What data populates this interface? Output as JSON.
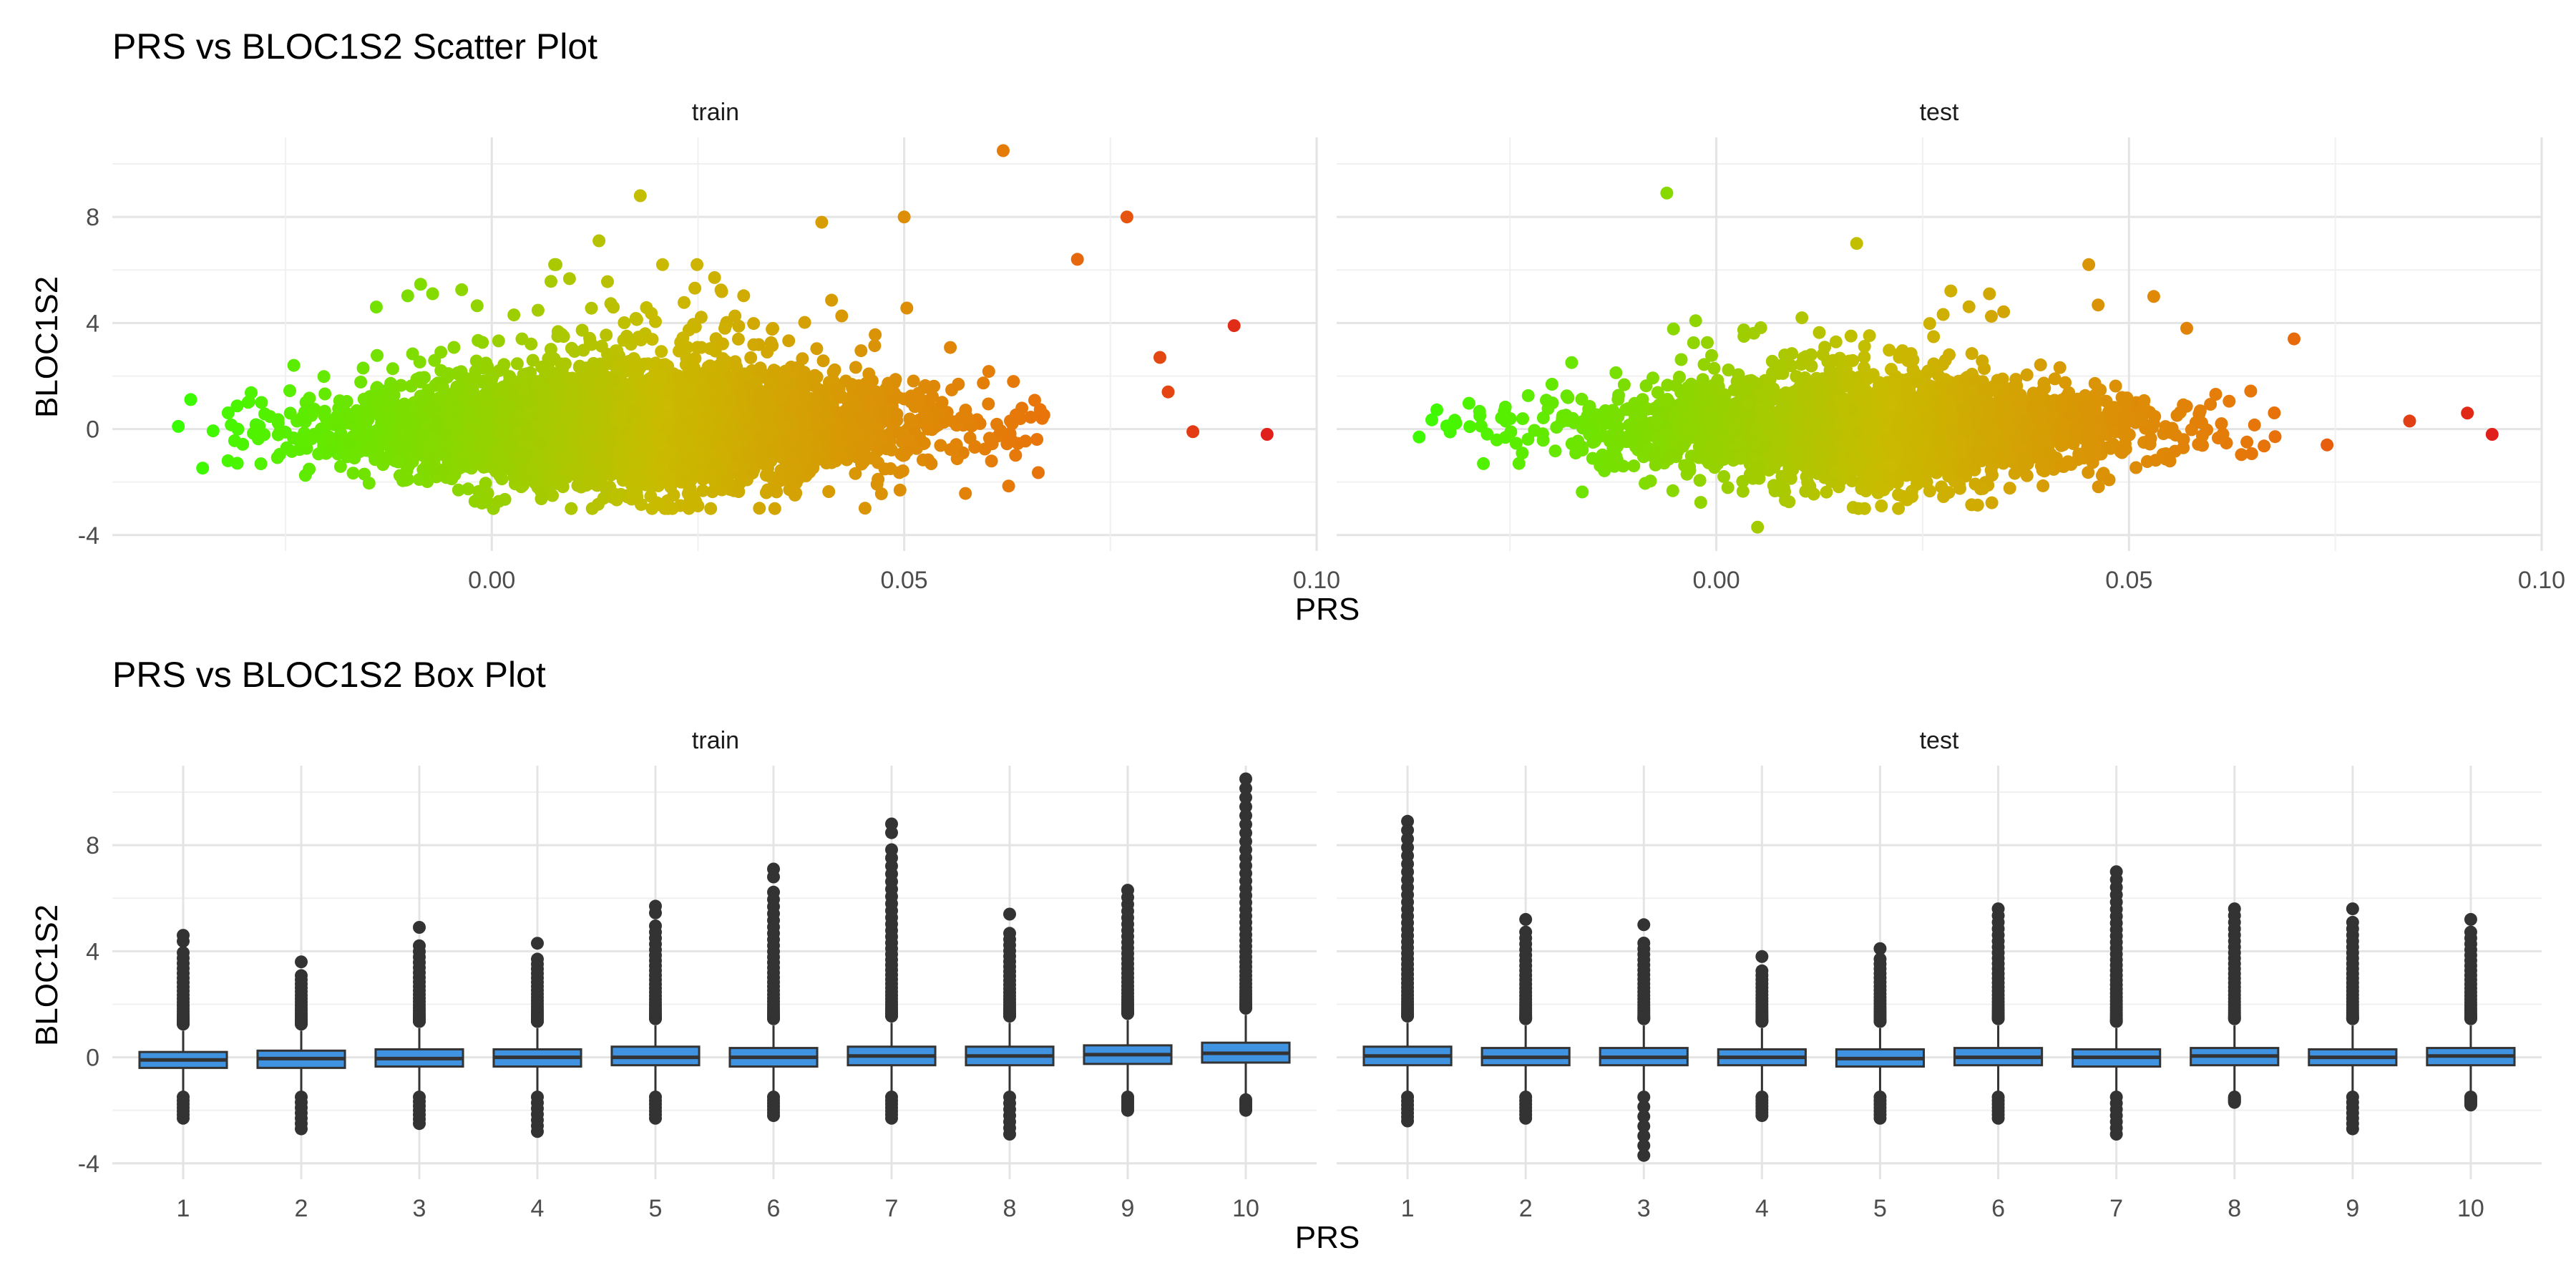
{
  "figure": {
    "scatter_title": "PRS vs BLOC1S2 Scatter Plot",
    "box_title": "PRS vs BLOC1S2 Box Plot",
    "facets": [
      "train",
      "test"
    ],
    "xlabel": "PRS",
    "ylabel": "BLOC1S2"
  },
  "chart_data": [
    {
      "type": "scatter",
      "title": "PRS vs BLOC1S2 Scatter Plot",
      "xlabel": "PRS",
      "ylabel": "BLOC1S2",
      "facets": [
        "train",
        "test"
      ],
      "xlim": [
        -0.046,
        0.1
      ],
      "ylim": [
        -4.6,
        11.0
      ],
      "x_ticks": [
        0.0,
        0.05,
        0.1
      ],
      "x_tick_labels": [
        "0.00",
        "0.05",
        "0.10"
      ],
      "y_ticks": [
        -4,
        0,
        4,
        8
      ],
      "y_tick_labels": [
        "-4",
        "0",
        "4",
        "8"
      ],
      "grid": true,
      "color_encoding": "points colored by PRS value, green (low) through yellow/orange to red (high)",
      "colors": {
        "low": "#33ff00",
        "mid": "#c9bb00",
        "high": "#e8730a",
        "max": "#e0201a"
      },
      "series": [
        {
          "name": "train",
          "x_range": [
            -0.039,
            0.094
          ],
          "center_x": 0.018,
          "notable_points": [
            {
              "x": 0.062,
              "y": 10.5
            },
            {
              "x": 0.018,
              "y": 8.8
            },
            {
              "x": 0.05,
              "y": 8.0
            },
            {
              "x": 0.077,
              "y": 8.0
            },
            {
              "x": 0.04,
              "y": 7.8
            },
            {
              "x": 0.013,
              "y": 7.1
            },
            {
              "x": 0.071,
              "y": 6.4
            },
            {
              "x": 0.09,
              "y": 3.9
            },
            {
              "x": 0.081,
              "y": 2.7
            },
            {
              "x": 0.082,
              "y": 1.4
            },
            {
              "x": 0.085,
              "y": -0.1
            },
            {
              "x": 0.094,
              "y": -0.2
            },
            {
              "x": -0.038,
              "y": 0.1
            },
            {
              "x": -0.024,
              "y": 2.4
            },
            {
              "x": -0.014,
              "y": 4.6
            },
            {
              "x": 0.025,
              "y": -2.9
            }
          ]
        },
        {
          "name": "test",
          "x_range": [
            -0.036,
            0.094
          ],
          "center_x": 0.018,
          "notable_points": [
            {
              "x": -0.006,
              "y": 8.9
            },
            {
              "x": 0.017,
              "y": 7.0
            },
            {
              "x": 0.053,
              "y": 5.0
            },
            {
              "x": 0.07,
              "y": 3.4
            },
            {
              "x": 0.057,
              "y": 3.8
            },
            {
              "x": 0.084,
              "y": 0.3
            },
            {
              "x": 0.091,
              "y": 0.6
            },
            {
              "x": 0.094,
              "y": -0.2
            },
            {
              "x": 0.074,
              "y": -0.6
            },
            {
              "x": -0.036,
              "y": -0.3
            },
            {
              "x": 0.005,
              "y": -3.7
            },
            {
              "x": 0.02,
              "y": -2.9
            }
          ]
        }
      ]
    },
    {
      "type": "box",
      "title": "PRS vs BLOC1S2 Box Plot",
      "xlabel": "PRS",
      "ylabel": "BLOC1S2",
      "facets": [
        "train",
        "test"
      ],
      "categories": [
        "1",
        "2",
        "3",
        "4",
        "5",
        "6",
        "7",
        "8",
        "9",
        "10"
      ],
      "ylim": [
        -4.6,
        11.0
      ],
      "y_ticks": [
        -4,
        0,
        4,
        8
      ],
      "y_tick_labels": [
        "-4",
        "0",
        "4",
        "8"
      ],
      "grid": true,
      "box_color": "#3f93e0",
      "series": [
        {
          "name": "train",
          "boxes": [
            {
              "q1": -0.4,
              "median": -0.1,
              "q3": 0.2,
              "whisker_low": -1.3,
              "whisker_high": 1.0,
              "out_max": 4.6,
              "out_min": -2.3
            },
            {
              "q1": -0.4,
              "median": -0.05,
              "q3": 0.25,
              "whisker_low": -1.3,
              "whisker_high": 1.0,
              "out_max": 3.6,
              "out_min": -2.7
            },
            {
              "q1": -0.35,
              "median": -0.05,
              "q3": 0.3,
              "whisker_low": -1.3,
              "whisker_high": 1.1,
              "out_max": 4.9,
              "out_min": -2.5
            },
            {
              "q1": -0.35,
              "median": 0.0,
              "q3": 0.3,
              "whisker_low": -1.3,
              "whisker_high": 1.1,
              "out_max": 4.3,
              "out_min": -2.8
            },
            {
              "q1": -0.3,
              "median": 0.0,
              "q3": 0.4,
              "whisker_low": -1.3,
              "whisker_high": 1.2,
              "out_max": 5.7,
              "out_min": -2.3
            },
            {
              "q1": -0.35,
              "median": 0.0,
              "q3": 0.35,
              "whisker_low": -1.3,
              "whisker_high": 1.2,
              "out_max": 7.1,
              "out_min": -2.2
            },
            {
              "q1": -0.3,
              "median": 0.05,
              "q3": 0.4,
              "whisker_low": -1.3,
              "whisker_high": 1.3,
              "out_max": 8.8,
              "out_min": -2.3
            },
            {
              "q1": -0.3,
              "median": 0.05,
              "q3": 0.4,
              "whisker_low": -1.3,
              "whisker_high": 1.3,
              "out_max": 5.4,
              "out_min": -2.9
            },
            {
              "q1": -0.25,
              "median": 0.1,
              "q3": 0.45,
              "whisker_low": -1.3,
              "whisker_high": 1.4,
              "out_max": 6.3,
              "out_min": -2.0
            },
            {
              "q1": -0.2,
              "median": 0.15,
              "q3": 0.55,
              "whisker_low": -1.4,
              "whisker_high": 1.6,
              "out_max": 10.5,
              "out_min": -2.0
            }
          ]
        },
        {
          "name": "test",
          "boxes": [
            {
              "q1": -0.3,
              "median": 0.05,
              "q3": 0.4,
              "whisker_low": -1.3,
              "whisker_high": 1.3,
              "out_max": 8.9,
              "out_min": -2.4
            },
            {
              "q1": -0.3,
              "median": 0.0,
              "q3": 0.35,
              "whisker_low": -1.3,
              "whisker_high": 1.2,
              "out_max": 5.2,
              "out_min": -2.3
            },
            {
              "q1": -0.3,
              "median": 0.0,
              "q3": 0.35,
              "whisker_low": -1.3,
              "whisker_high": 1.2,
              "out_max": 5.0,
              "out_min": -3.7
            },
            {
              "q1": -0.3,
              "median": 0.0,
              "q3": 0.3,
              "whisker_low": -1.3,
              "whisker_high": 1.1,
              "out_max": 3.8,
              "out_min": -2.2
            },
            {
              "q1": -0.35,
              "median": -0.05,
              "q3": 0.3,
              "whisker_low": -1.3,
              "whisker_high": 1.1,
              "out_max": 4.1,
              "out_min": -2.3
            },
            {
              "q1": -0.3,
              "median": 0.0,
              "q3": 0.35,
              "whisker_low": -1.3,
              "whisker_high": 1.2,
              "out_max": 5.6,
              "out_min": -2.3
            },
            {
              "q1": -0.35,
              "median": 0.0,
              "q3": 0.3,
              "whisker_low": -1.3,
              "whisker_high": 1.1,
              "out_max": 7.0,
              "out_min": -2.9
            },
            {
              "q1": -0.3,
              "median": 0.05,
              "q3": 0.35,
              "whisker_low": -1.3,
              "whisker_high": 1.2,
              "out_max": 5.6,
              "out_min": -1.7
            },
            {
              "q1": -0.3,
              "median": 0.0,
              "q3": 0.3,
              "whisker_low": -1.3,
              "whisker_high": 1.2,
              "out_max": 5.6,
              "out_min": -2.7
            },
            {
              "q1": -0.3,
              "median": 0.05,
              "q3": 0.35,
              "whisker_low": -1.3,
              "whisker_high": 1.2,
              "out_max": 5.2,
              "out_min": -1.8
            }
          ]
        }
      ]
    }
  ]
}
